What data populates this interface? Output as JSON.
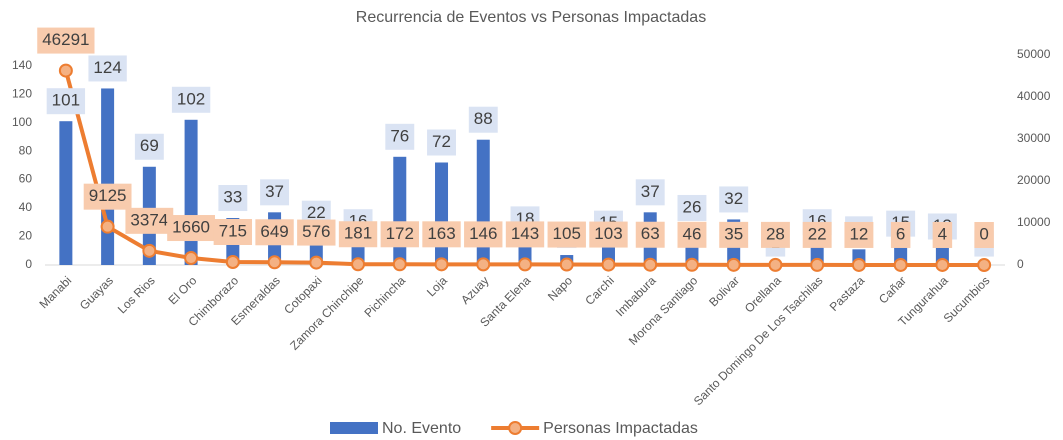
{
  "chart_data": {
    "type": "bar_line",
    "title": "Recurrencia de Eventos vs Personas Impactadas",
    "categories": [
      "Manabi",
      "Guayas",
      "Los Rios",
      "El Oro",
      "Chimborazo",
      "Esmeraldas",
      "Cotopaxi",
      "Zamora Chinchipe",
      "Pichincha",
      "Loja",
      "Azuay",
      "Santa Elena",
      "Napo",
      "Carchi",
      "Imbabura",
      "Morona Santiago",
      "Bolivar",
      "Orellana",
      "Santo Domingo De Los Tsachilas",
      "Pastaza",
      "Cañar",
      "Tungurahua",
      "Sucumbios"
    ],
    "series": [
      {
        "name": "No. Evento",
        "type": "bar",
        "color": "#4472c4",
        "values": [
          101,
          124,
          69,
          102,
          33,
          37,
          22,
          16,
          76,
          72,
          88,
          18,
          7,
          15,
          37,
          26,
          32,
          1,
          16,
          11,
          15,
          13,
          1
        ]
      },
      {
        "name": "Personas Impactadas",
        "type": "line",
        "axis": "y2",
        "color": "#ed7d31",
        "values": [
          46291,
          9125,
          3374,
          1660,
          715,
          649,
          576,
          181,
          172,
          163,
          146,
          143,
          105,
          103,
          63,
          46,
          35,
          28,
          22,
          12,
          6,
          4,
          0
        ]
      }
    ],
    "ylim": [
      0,
      147.5
    ],
    "yticks": [
      0,
      20,
      40,
      60,
      80,
      100,
      120,
      140
    ],
    "y2lim": [
      0,
      50000
    ],
    "y2ticks": [
      0,
      10000,
      20000,
      30000,
      40000,
      50000
    ],
    "legend": "bottom"
  }
}
